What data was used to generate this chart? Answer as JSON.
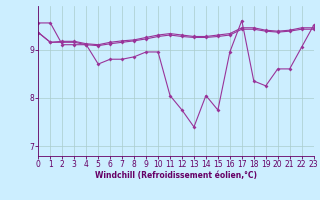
{
  "x": [
    0,
    1,
    2,
    3,
    4,
    5,
    6,
    7,
    8,
    9,
    10,
    11,
    12,
    13,
    14,
    15,
    16,
    17,
    18,
    19,
    20,
    21,
    22,
    23
  ],
  "line_main": [
    9.55,
    9.55,
    9.1,
    9.1,
    9.1,
    8.7,
    8.8,
    8.8,
    8.85,
    8.95,
    8.95,
    8.05,
    7.75,
    7.4,
    8.05,
    7.75,
    8.95,
    9.6,
    8.35,
    8.25,
    8.6,
    8.6,
    9.05,
    9.5
  ],
  "line_upper1": [
    9.35,
    9.15,
    9.15,
    9.15,
    9.1,
    9.08,
    9.12,
    9.15,
    9.18,
    9.22,
    9.27,
    9.3,
    9.27,
    9.25,
    9.25,
    9.27,
    9.3,
    9.42,
    9.42,
    9.38,
    9.36,
    9.38,
    9.42,
    9.42
  ],
  "line_upper2": [
    9.35,
    9.15,
    9.17,
    9.17,
    9.12,
    9.1,
    9.15,
    9.18,
    9.2,
    9.25,
    9.3,
    9.33,
    9.3,
    9.27,
    9.27,
    9.3,
    9.33,
    9.45,
    9.45,
    9.4,
    9.38,
    9.4,
    9.45,
    9.45
  ],
  "line_color": "#993399",
  "bg_color": "#cceeff",
  "grid_color": "#aacccc",
  "axis_color": "#660066",
  "tick_color": "#660066",
  "xlabel": "Windchill (Refroidissement éolien,°C)",
  "ylim": [
    6.8,
    9.9
  ],
  "xlim": [
    0,
    23
  ],
  "yticks": [
    7,
    8,
    9
  ],
  "xticks": [
    0,
    1,
    2,
    3,
    4,
    5,
    6,
    7,
    8,
    9,
    10,
    11,
    12,
    13,
    14,
    15,
    16,
    17,
    18,
    19,
    20,
    21,
    22,
    23
  ],
  "xlabel_fontsize": 5.5,
  "tick_fontsize": 5.5
}
